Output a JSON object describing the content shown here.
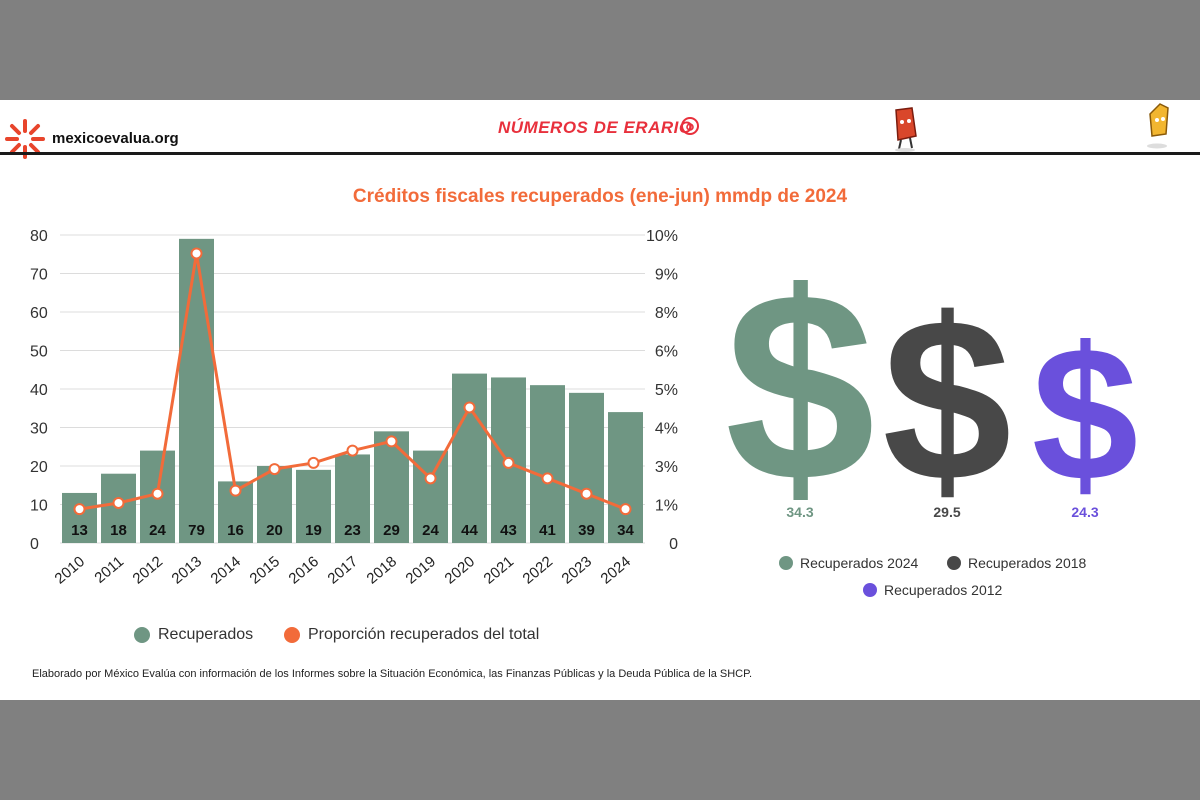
{
  "header": {
    "site": "mexicoevalua.org",
    "brand": "NÚMEROS DE ERARIO"
  },
  "colors": {
    "bars": "#6f9683",
    "line": "#f26b3a",
    "title": "#f26b3a",
    "dollar_2024": "#6f9683",
    "dollar_2018": "#484848",
    "dollar_2012": "#6a50dc"
  },
  "chart_data": [
    {
      "type": "bar",
      "title": "Créditos fiscales recuperados (ene-jun) mmdp de 2024",
      "categories": [
        "2010",
        "2011",
        "2012",
        "2013",
        "2014",
        "2015",
        "2016",
        "2017",
        "2018",
        "2019",
        "2020",
        "2021",
        "2022",
        "2023",
        "2024"
      ],
      "series": [
        {
          "name": "Recuperados",
          "type": "bar",
          "axis": "left",
          "values": [
            13,
            18,
            24,
            79,
            16,
            20,
            19,
            23,
            29,
            24,
            44,
            43,
            41,
            39,
            34
          ]
        },
        {
          "name": "Proporción recuperados del total",
          "type": "line",
          "axis": "right",
          "values": [
            1.1,
            1.3,
            1.6,
            9.4,
            1.7,
            2.4,
            2.6,
            3.0,
            3.3,
            2.1,
            4.4,
            2.6,
            2.1,
            1.6,
            1.1
          ]
        }
      ],
      "y_left": {
        "ylim": [
          0,
          80
        ],
        "ticks": [
          "0",
          "10",
          "20",
          "30",
          "40",
          "50",
          "60",
          "70",
          "80"
        ]
      },
      "y_right": {
        "ylim": [
          0,
          10
        ],
        "ticks": [
          "0",
          "1%",
          "3%",
          "4%",
          "5%",
          "6%",
          "8%",
          "9%",
          "10%"
        ]
      },
      "grid": true,
      "legend": "bottom"
    },
    {
      "type": "pictograph",
      "items": [
        {
          "name": "Recuperados 2024",
          "value": "34.3"
        },
        {
          "name": "Recuperados 2018",
          "value": "29.5"
        },
        {
          "name": "Recuperados 2012",
          "value": "24.3"
        }
      ],
      "legend": "bottom"
    }
  ],
  "footer": {
    "note": "Elaborado por México Evalúa con información de los Informes sobre la Situación Económica, las Finanzas Públicas y la Deuda Pública de la SHCP."
  }
}
